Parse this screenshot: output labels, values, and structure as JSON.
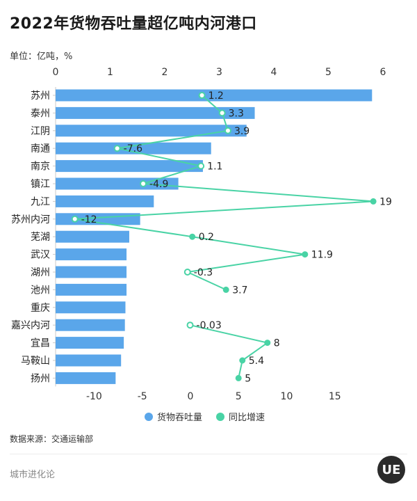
{
  "header": {
    "title": "2022年货物吞吐量超亿吨内河港口",
    "unit": "单位：亿吨，%"
  },
  "colors": {
    "bar": "#5aa6ea",
    "line": "#49d3a5",
    "axis_text": "#333333"
  },
  "chart_data": {
    "type": "bar",
    "orientation": "horizontal",
    "categories": [
      "苏州",
      "泰州",
      "江阴",
      "南通",
      "南京",
      "镇江",
      "九江",
      "苏州内河",
      "芜湖",
      "武汉",
      "湖州",
      "池州",
      "重庆",
      "嘉兴内河",
      "宜昌",
      "马鞍山",
      "扬州"
    ],
    "series": [
      {
        "name": "货物吞吐量",
        "type": "bar",
        "axis": "top",
        "values": [
          5.8,
          3.65,
          3.5,
          2.85,
          2.7,
          2.25,
          1.8,
          1.55,
          1.35,
          1.3,
          1.3,
          1.3,
          1.28,
          1.27,
          1.25,
          1.2,
          1.1
        ]
      },
      {
        "name": "同比增速",
        "type": "line",
        "axis": "bottom",
        "values": [
          1.2,
          3.3,
          3.9,
          -7.6,
          1.1,
          -4.9,
          19,
          -12,
          0.2,
          11.9,
          -0.3,
          3.7,
          null,
          -0.03,
          8,
          5.4,
          5
        ],
        "labels": [
          "1.2",
          "3.3",
          "3.9",
          "-7.6",
          "1.1",
          "-4.9",
          "19",
          "-12",
          "0.2",
          "11.9",
          "-0.3",
          "3.7",
          "",
          "-0.03",
          "8",
          "5.4",
          "5"
        ]
      }
    ],
    "top_axis": {
      "ticks": [
        "0",
        "1",
        "2",
        "3",
        "4",
        "5",
        "6"
      ],
      "range": [
        0,
        6
      ]
    },
    "bottom_axis": {
      "ticks": [
        "-10",
        "-5",
        "0",
        "5",
        "10",
        "15"
      ],
      "range": [
        -14,
        20
      ]
    },
    "grid": false,
    "legend": [
      "货物吞吐量",
      "同比增速"
    ],
    "legend_position": "bottom"
  },
  "footer": {
    "source": "数据来源：交通运输部",
    "brand": "城市进化论",
    "logo_text": "UE"
  }
}
